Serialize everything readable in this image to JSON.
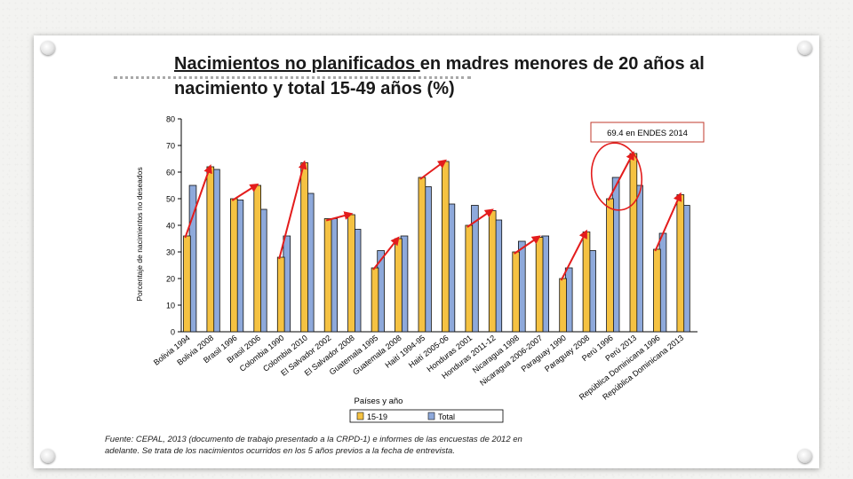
{
  "slide": {
    "title_underlined": "Nacimientos no planificados ",
    "title_rest": "en madres menores de 20 años al nacimiento y total 15-49 años (%)",
    "source": "Fuente: CEPAL, 2013 (documento de trabajo presentado a la CRPD-1) e informes de las encuestas de 2012 en adelante. Se trata de los nacimientos ocurridos en los 5 años previos a la fecha de entrevista."
  },
  "colors": {
    "series_15_19": "#f5c242",
    "series_total": "#8ea9db",
    "arrow": "#e31c1c",
    "callout_border": "#c0392b"
  },
  "chart_data": {
    "type": "bar",
    "ylabel": "Porcentaje de nacimientos no deseados",
    "xlabel": "Países y año",
    "ylim": [
      0,
      80
    ],
    "yticks": [
      0,
      10,
      20,
      30,
      40,
      50,
      60,
      70,
      80
    ],
    "grid": false,
    "legend_position": "bottom",
    "categories": [
      "Bolivia 1994",
      "Bolivia 2008",
      "Brasil 1996",
      "Brasil 2006",
      "Colombia 1990",
      "Colombia 2010",
      "El Salvador 2002",
      "El Salvador 2008",
      "Guatemala 1995",
      "Guatemala 2008",
      "Haití 1994-95",
      "Haití 2005-06",
      "Honduras 2001",
      "Honduras 2011-12",
      "Nicaragua 1998",
      "Nicaragua 2006-2007",
      "Paraguay 1990",
      "Paraguay 2008",
      "Perú 1996",
      "Perú 2013",
      "República Dominicana 1996",
      "República Dominicana 2013"
    ],
    "series": [
      {
        "name": "15-19",
        "values": [
          36,
          62,
          50,
          55,
          28,
          63.5,
          42.5,
          44,
          24,
          35,
          58,
          64,
          40,
          45.5,
          30,
          35.5,
          20,
          37.5,
          50,
          67,
          31,
          51.5
        ]
      },
      {
        "name": "Total",
        "values": [
          55,
          61,
          49.5,
          46,
          36,
          52,
          42.5,
          38.5,
          30.5,
          36,
          54.5,
          48,
          47.5,
          42,
          34,
          36,
          24,
          30.5,
          58,
          55,
          37,
          47.5
        ]
      }
    ],
    "annotation": "69.4 en ENDES 2014"
  }
}
